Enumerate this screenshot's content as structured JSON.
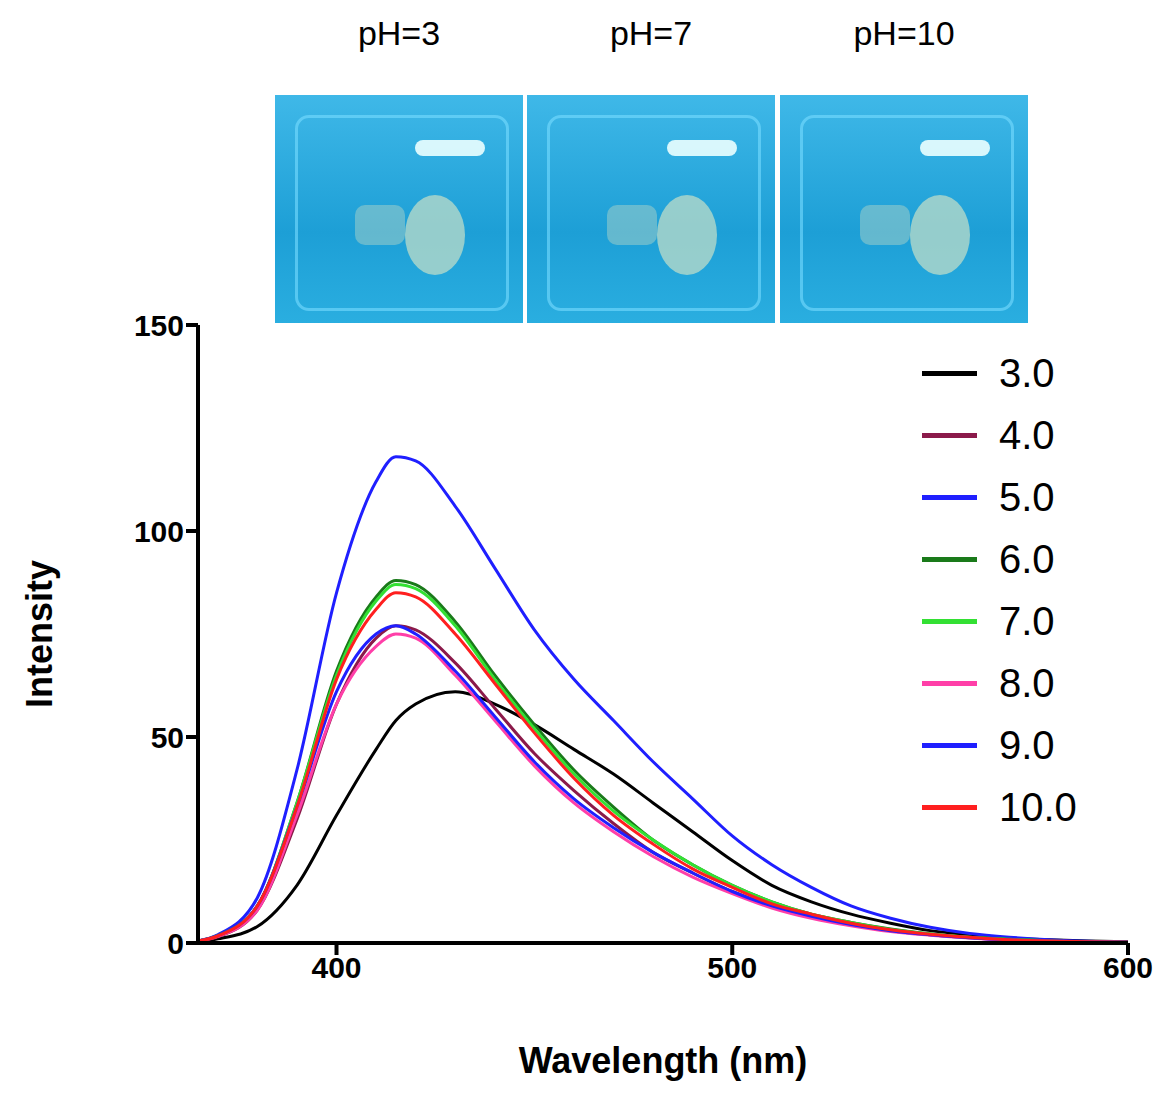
{
  "chart_data": {
    "type": "line",
    "x_label": "Wavelength (nm)",
    "y_label": "Intensity",
    "annotations": [
      "pH=3",
      "pH=7",
      "pH=10"
    ],
    "x": [
      365,
      370,
      380,
      390,
      400,
      410,
      415,
      420,
      430,
      440,
      450,
      460,
      470,
      480,
      490,
      500,
      510,
      520,
      530,
      540,
      550,
      560,
      570,
      580,
      590,
      600
    ],
    "series": [
      {
        "name": "3.0",
        "color": "#000000",
        "values": [
          0.3,
          1,
          4,
          14,
          31,
          47,
          54,
          58,
          61,
          58,
          53,
          47,
          41,
          34,
          27,
          20,
          14,
          10,
          7,
          4.8,
          3,
          2,
          1.2,
          0.8,
          0.5,
          0.3
        ]
      },
      {
        "name": "4.0",
        "color": "#8b1a4a",
        "values": [
          0.5,
          1.5,
          8,
          30,
          58,
          74,
          77,
          76,
          68,
          57,
          46,
          37,
          29,
          22,
          17,
          12.5,
          9,
          6.5,
          4.5,
          3,
          2,
          1.3,
          0.8,
          0.5,
          0.3,
          0.2
        ]
      },
      {
        "name": "5.0",
        "color": "#1f1fff",
        "values": [
          0.5,
          2,
          11,
          42,
          85,
          112,
          118,
          117,
          106,
          91,
          76,
          64,
          54,
          44,
          35,
          26,
          19,
          13.5,
          9,
          6,
          3.8,
          2.3,
          1.4,
          0.8,
          0.4,
          0.2
        ]
      },
      {
        "name": "6.0",
        "color": "#1a7a1a",
        "values": [
          0.5,
          1.8,
          9,
          34,
          66,
          84,
          88,
          87,
          78,
          65,
          53,
          42,
          33,
          25,
          19,
          14,
          10,
          7,
          5,
          3.4,
          2.2,
          1.4,
          0.9,
          0.5,
          0.3,
          0.2
        ]
      },
      {
        "name": "7.0",
        "color": "#33e033",
        "values": [
          0.5,
          1.8,
          9,
          34,
          65,
          83,
          87,
          86,
          77,
          64,
          52,
          41,
          32,
          25,
          19,
          14,
          10,
          7,
          5,
          3.3,
          2.2,
          1.4,
          0.9,
          0.5,
          0.3,
          0.2
        ]
      },
      {
        "name": "8.0",
        "color": "#ff3fa8",
        "values": [
          0.5,
          1.6,
          8,
          31,
          58,
          72,
          75,
          74,
          65,
          54,
          43,
          34,
          27,
          21,
          16,
          12,
          8.5,
          6,
          4.2,
          2.8,
          1.9,
          1.2,
          0.7,
          0.4,
          0.3,
          0.2
        ]
      },
      {
        "name": "9.0",
        "color": "#1f1fff",
        "values": [
          0.5,
          1.8,
          9,
          33,
          61,
          75,
          77,
          75,
          66,
          55,
          44,
          35,
          28,
          22,
          17,
          12.5,
          9,
          6.5,
          4.5,
          3,
          2,
          1.3,
          0.8,
          0.5,
          0.3,
          0.2
        ]
      },
      {
        "name": "10.0",
        "color": "#ff1f1f",
        "values": [
          0.5,
          1.7,
          9,
          33,
          64,
          81,
          85,
          84,
          75,
          63,
          51,
          40,
          31,
          24,
          18,
          13.5,
          9.5,
          7,
          4.8,
          3.2,
          2.1,
          1.4,
          0.8,
          0.5,
          0.3,
          0.2
        ]
      }
    ],
    "xlim": [
      365,
      600
    ],
    "xticks": [
      400,
      500,
      600
    ],
    "ylim": [
      0,
      150
    ],
    "yticks": [
      0,
      50,
      100,
      150
    ],
    "legend": "upper right"
  }
}
